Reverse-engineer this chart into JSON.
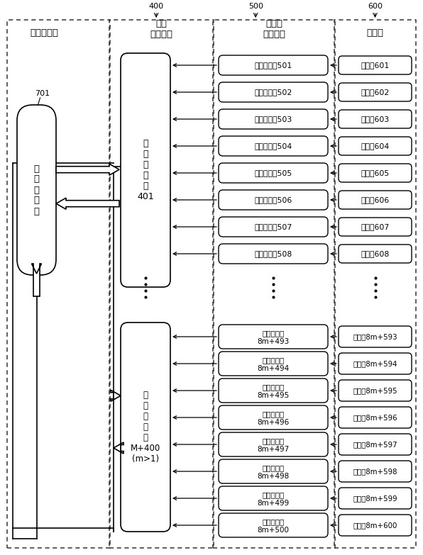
{
  "bg_color": "#ffffff",
  "figsize": [
    5.96,
    7.83
  ],
  "dpi": 100,
  "sensor_module_label": "传感器模块",
  "transceiver_module_label": "数据\n收发模块",
  "interface_module_label": "传感器\n接口模块",
  "sensor_label": "传感器",
  "ref_400": "400",
  "ref_500": "500",
  "ref_600": "600",
  "ref_701": "701",
  "decoder_label": "第\n二\n译\n码\n器",
  "transceiver1_label": "数\n据\n收\n发\n器\n401",
  "transceiver2_label": "数\n据\n收\n发\n器\nM+400\n(m>1)",
  "interface_boxes_top": [
    "传感器接口501",
    "传感器接口502",
    "传感器接口503",
    "传感器接口504",
    "传感器接口505",
    "传感器接口506",
    "传感器接口507",
    "传感器接口508"
  ],
  "sensor_boxes_top": [
    "传感器601",
    "传感器602",
    "传感器603",
    "传感器604",
    "传感器605",
    "传感器606",
    "传感器607",
    "传感器608"
  ],
  "interface_boxes_bottom_line1": [
    "传感器接口",
    "传感器接口",
    "传感器接口",
    "传感器接口",
    "传感器接口",
    "传感器接口",
    "传感器接口",
    "传感器接口"
  ],
  "interface_boxes_bottom_line2": [
    "8m+493",
    "8m+494",
    "8m+495",
    "8m+496",
    "8m+497",
    "8m+498",
    "8m+499",
    "8m+500"
  ],
  "sensor_boxes_bottom": [
    "传感器8m+593",
    "传感器8m+594",
    "传感器8m+595",
    "传感器8m+596",
    "传感器8m+597",
    "传感器8m+598",
    "传感器8m+599",
    "传感器8m+600"
  ]
}
